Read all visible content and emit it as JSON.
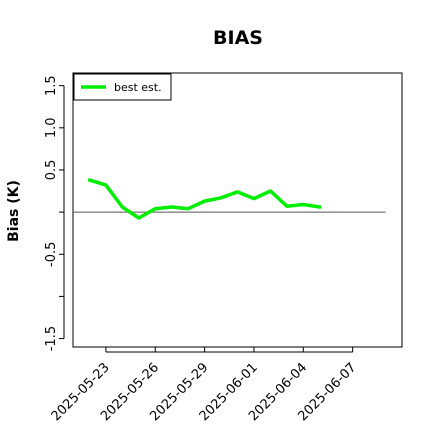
{
  "chart_data": {
    "type": "line",
    "title": "BIAS",
    "xlabel": "",
    "ylabel": "Bias (K)",
    "ylim": [
      -1.6,
      1.65
    ],
    "yticks": [
      -1.5,
      -1.0,
      -0.5,
      0,
      0.5,
      1.0,
      1.5
    ],
    "ytick_labels": [
      "-1.5",
      "",
      "-0.5",
      "",
      "0.5",
      "1.0",
      "1.5"
    ],
    "xlim": [
      "2025-05-21",
      "2025-06-10"
    ],
    "xticks": [
      "2025-05-23",
      "2025-05-26",
      "2025-05-29",
      "2025-06-01",
      "2025-06-04",
      "2025-06-07"
    ],
    "reference_line": {
      "y": 0,
      "x_start": "2025-05-21",
      "x_end": "2025-06-09"
    },
    "legend": {
      "position": "top-left",
      "entries": [
        "best est."
      ]
    },
    "series": [
      {
        "name": "best est.",
        "color": "#00ee00",
        "x": [
          "2025-05-22",
          "2025-05-23",
          "2025-05-24",
          "2025-05-25",
          "2025-05-26",
          "2025-05-27",
          "2025-05-28",
          "2025-05-29",
          "2025-05-30",
          "2025-05-31",
          "2025-06-01",
          "2025-06-02",
          "2025-06-03",
          "2025-06-04",
          "2025-06-05"
        ],
        "values": [
          0.38,
          0.32,
          0.06,
          -0.07,
          0.04,
          0.06,
          0.04,
          0.13,
          0.17,
          0.24,
          0.16,
          0.25,
          0.07,
          0.09,
          0.06
        ]
      }
    ]
  }
}
